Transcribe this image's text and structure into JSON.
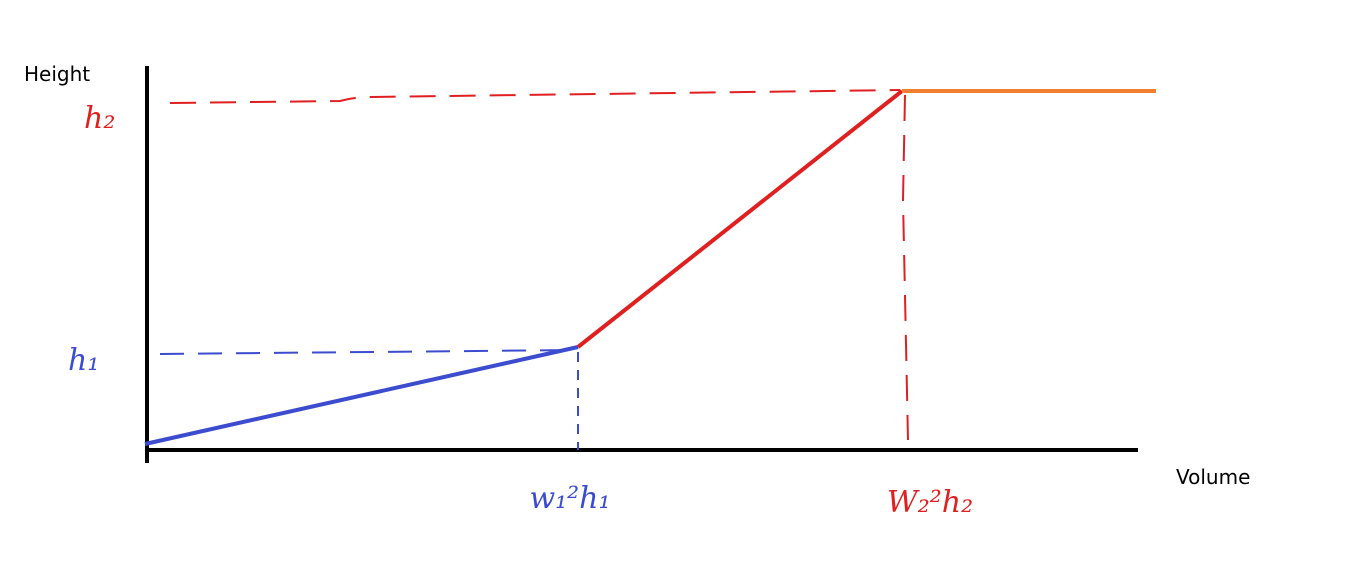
{
  "axes": {
    "y_label": "Height",
    "x_label": "Volume"
  },
  "marks": {
    "h1": "h₁",
    "h2": "h₂",
    "v1": "w₁²h₁",
    "v2": "W₂²h₂"
  }
}
